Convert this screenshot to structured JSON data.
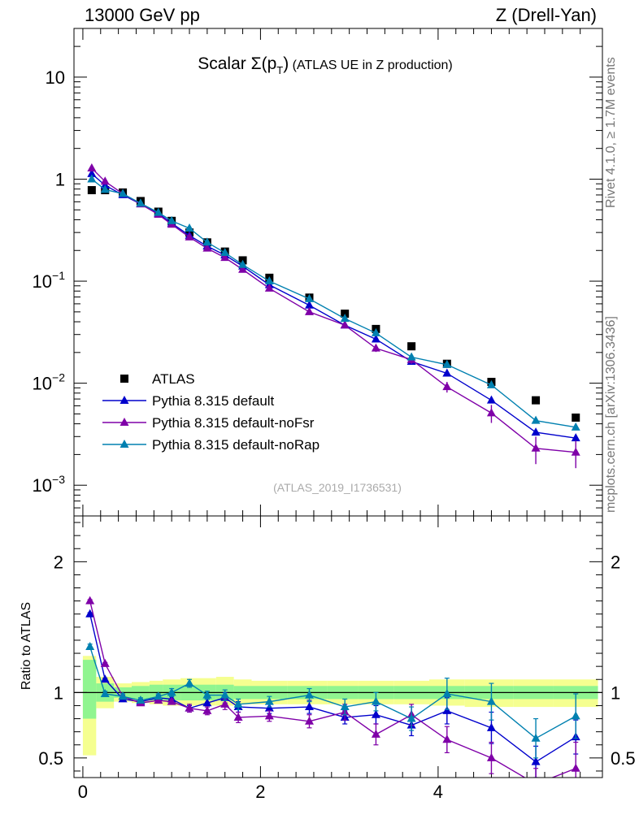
{
  "header": {
    "left": "13000 GeV pp",
    "right": "Z (Drell-Yan)"
  },
  "side_labels": {
    "rivet": "Rivet 4.1.0, ≥ 1.7M events",
    "mcplots": "mcplots.cern.ch [arXiv:1306.3436]"
  },
  "colors": {
    "atlas": "#000000",
    "default": "#0000cc",
    "noFsr": "#7f00a8",
    "noRap": "#0080b0",
    "band_inner": "#90f590",
    "band_outer": "#f5ff90"
  },
  "chart_data": [
    {
      "type": "scatter",
      "panel": "main",
      "title_main": "Scalar ",
      "title_sigma": "Σ(p",
      "title_sub": "T",
      "title_close": ")",
      "title_rest": " (ATLAS UE in Z production)",
      "yscale": "log",
      "ylim": [
        0.0005,
        30
      ],
      "xlim": [
        -0.1,
        5.85
      ],
      "ytick_labels": [
        {
          "value": 10,
          "base": "10",
          "exp": ""
        },
        {
          "value": 1,
          "base": "1",
          "exp": ""
        },
        {
          "value": 0.1,
          "base": "10",
          "exp": "−1"
        },
        {
          "value": 0.01,
          "base": "10",
          "exp": "−2"
        },
        {
          "value": 0.001,
          "base": "10",
          "exp": "−3"
        }
      ],
      "watermark": "(ATLAS_2019_I1736531)",
      "legend_position": "bottom-left",
      "x": [
        0.1,
        0.25,
        0.45,
        0.65,
        0.85,
        1.0,
        1.2,
        1.4,
        1.6,
        1.8,
        2.1,
        2.55,
        2.95,
        3.3,
        3.7,
        4.1,
        4.6,
        5.1,
        5.55
      ],
      "series": [
        {
          "name": "ATLAS",
          "key": "atlas",
          "marker": "square",
          "values": [
            0.78,
            0.78,
            0.74,
            0.61,
            0.48,
            0.39,
            0.3,
            0.24,
            0.195,
            0.16,
            0.108,
            0.069,
            0.048,
            0.034,
            0.023,
            0.0155,
            0.0103,
            0.0068,
            0.0046
          ]
        },
        {
          "name": "Pythia 8.315 default",
          "key": "default",
          "marker": "triangle",
          "values": [
            1.13,
            0.87,
            0.7,
            0.57,
            0.46,
            0.37,
            0.28,
            0.22,
            0.18,
            0.14,
            0.092,
            0.058,
            0.037,
            0.027,
            0.0163,
            0.0125,
            0.0068,
            0.0033,
            0.0029
          ]
        },
        {
          "name": "Pythia 8.315 default-noFsr",
          "key": "noFsr",
          "marker": "triangle",
          "values": [
            1.28,
            0.95,
            0.72,
            0.57,
            0.45,
            0.36,
            0.27,
            0.21,
            0.17,
            0.13,
            0.085,
            0.05,
            0.037,
            0.022,
            0.017,
            0.0092,
            0.0051,
            0.0023,
            0.0021
          ],
          "err_rel": [
            0.02,
            0.02,
            0.02,
            0.02,
            0.02,
            0.02,
            0.03,
            0.03,
            0.04,
            0.04,
            0.04,
            0.05,
            0.06,
            0.08,
            0.09,
            0.12,
            0.2,
            0.3,
            0.3
          ]
        },
        {
          "name": "Pythia 8.315 default-noRap",
          "key": "noRap",
          "marker": "triangle",
          "values": [
            1.0,
            0.79,
            0.72,
            0.58,
            0.47,
            0.39,
            0.33,
            0.24,
            0.19,
            0.145,
            0.1,
            0.067,
            0.043,
            0.031,
            0.018,
            0.0152,
            0.0096,
            0.0043,
            0.0037
          ]
        }
      ]
    },
    {
      "type": "scatter",
      "panel": "ratio",
      "ylabel": "Ratio to ATLAS",
      "ylim": [
        0.35,
        2.35
      ],
      "xlim": [
        -0.1,
        5.85
      ],
      "ytick_labels": [
        "0.5",
        "1",
        "2"
      ],
      "ytick_values": [
        0.5,
        1,
        2
      ],
      "xtick_labels": [
        "0",
        "2",
        "4"
      ],
      "xtick_values": [
        0,
        2,
        4
      ],
      "bins": [
        {
          "lo": 0.0,
          "hi": 0.15,
          "inner": [
            0.8,
            1.25
          ],
          "outer": [
            0.52,
            1.28
          ]
        },
        {
          "lo": 0.15,
          "hi": 0.35,
          "inner": [
            0.93,
            1.07
          ],
          "outer": [
            0.88,
            1.12
          ]
        },
        {
          "lo": 0.35,
          "hi": 0.55,
          "inner": [
            0.96,
            1.04
          ],
          "outer": [
            0.93,
            1.07
          ]
        },
        {
          "lo": 0.55,
          "hi": 0.75,
          "inner": [
            0.95,
            1.05
          ],
          "outer": [
            0.92,
            1.08
          ]
        },
        {
          "lo": 0.75,
          "hi": 0.9,
          "inner": [
            0.94,
            1.06
          ],
          "outer": [
            0.91,
            1.09
          ]
        },
        {
          "lo": 0.9,
          "hi": 1.1,
          "inner": [
            0.94,
            1.06
          ],
          "outer": [
            0.9,
            1.1
          ]
        },
        {
          "lo": 1.1,
          "hi": 1.3,
          "inner": [
            0.94,
            1.06
          ],
          "outer": [
            0.9,
            1.11
          ]
        },
        {
          "lo": 1.3,
          "hi": 1.5,
          "inner": [
            0.94,
            1.06
          ],
          "outer": [
            0.9,
            1.11
          ]
        },
        {
          "lo": 1.5,
          "hi": 1.7,
          "inner": [
            0.94,
            1.06
          ],
          "outer": [
            0.9,
            1.12
          ]
        },
        {
          "lo": 1.7,
          "hi": 1.9,
          "inner": [
            0.95,
            1.05
          ],
          "outer": [
            0.91,
            1.1
          ]
        },
        {
          "lo": 1.9,
          "hi": 2.3,
          "inner": [
            0.95,
            1.05
          ],
          "outer": [
            0.91,
            1.09
          ]
        },
        {
          "lo": 2.3,
          "hi": 2.75,
          "inner": [
            0.95,
            1.05
          ],
          "outer": [
            0.91,
            1.09
          ]
        },
        {
          "lo": 2.75,
          "hi": 3.1,
          "inner": [
            0.95,
            1.05
          ],
          "outer": [
            0.91,
            1.09
          ]
        },
        {
          "lo": 3.1,
          "hi": 3.5,
          "inner": [
            0.95,
            1.05
          ],
          "outer": [
            0.91,
            1.09
          ]
        },
        {
          "lo": 3.5,
          "hi": 3.9,
          "inner": [
            0.95,
            1.05
          ],
          "outer": [
            0.91,
            1.09
          ]
        },
        {
          "lo": 3.9,
          "hi": 4.3,
          "inner": [
            0.95,
            1.05
          ],
          "outer": [
            0.9,
            1.1
          ]
        },
        {
          "lo": 4.3,
          "hi": 4.85,
          "inner": [
            0.95,
            1.05
          ],
          "outer": [
            0.89,
            1.1
          ]
        },
        {
          "lo": 4.85,
          "hi": 5.3,
          "inner": [
            0.95,
            1.05
          ],
          "outer": [
            0.89,
            1.1
          ]
        },
        {
          "lo": 5.3,
          "hi": 5.8,
          "inner": [
            0.95,
            1.05
          ],
          "outer": [
            0.89,
            1.1
          ]
        }
      ],
      "x": [
        0.08,
        0.25,
        0.45,
        0.65,
        0.85,
        1.0,
        1.2,
        1.4,
        1.6,
        1.75,
        2.1,
        2.55,
        2.95,
        3.3,
        3.7,
        4.1,
        4.6,
        5.1,
        5.55
      ],
      "series": [
        {
          "name": "Pythia 8.315 default",
          "key": "default",
          "values": [
            1.6,
            1.1,
            0.95,
            0.93,
            0.96,
            0.95,
            0.88,
            0.92,
            0.96,
            0.89,
            0.88,
            0.89,
            0.81,
            0.83,
            0.75,
            0.86,
            0.73,
            0.47,
            0.66
          ],
          "err": [
            0.01,
            0.01,
            0.01,
            0.02,
            0.02,
            0.02,
            0.02,
            0.03,
            0.04,
            0.04,
            0.04,
            0.05,
            0.05,
            0.07,
            0.08,
            0.1,
            0.12,
            0.12,
            0.13
          ]
        },
        {
          "name": "Pythia 8.315 default-noFsr",
          "key": "noFsr",
          "values": [
            1.7,
            1.22,
            0.97,
            0.92,
            0.94,
            0.93,
            0.88,
            0.86,
            0.91,
            0.81,
            0.82,
            0.78,
            0.85,
            0.68,
            0.83,
            0.64,
            0.5,
            0.3,
            0.42
          ],
          "err": [
            0.01,
            0.01,
            0.01,
            0.02,
            0.02,
            0.02,
            0.03,
            0.03,
            0.04,
            0.04,
            0.04,
            0.05,
            0.06,
            0.08,
            0.08,
            0.1,
            0.12,
            0.12,
            0.2
          ]
        },
        {
          "name": "Pythia 8.315 default-noRap",
          "key": "noRap",
          "values": [
            1.35,
            0.99,
            0.97,
            0.94,
            0.97,
            1.0,
            1.07,
            0.98,
            0.98,
            0.91,
            0.93,
            0.98,
            0.89,
            0.93,
            0.8,
            0.99,
            0.93,
            0.65,
            0.82
          ],
          "err": [
            0.02,
            0.02,
            0.02,
            0.02,
            0.02,
            0.03,
            0.03,
            0.03,
            0.04,
            0.04,
            0.04,
            0.05,
            0.06,
            0.07,
            0.09,
            0.12,
            0.14,
            0.15,
            0.17
          ]
        }
      ]
    }
  ]
}
